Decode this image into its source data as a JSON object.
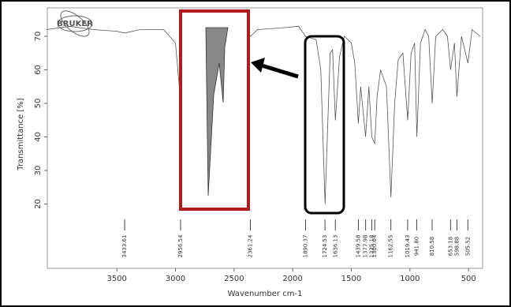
{
  "logo": "BRUKER",
  "chart_data": {
    "type": "line",
    "ylabel": "Transmittance [%]",
    "xlabel": "Wavenumber cm-1",
    "x": [
      4100,
      3900,
      3700,
      3500,
      3433,
      3300,
      3100,
      3000,
      2960,
      2930,
      2870,
      2800,
      2600,
      2400,
      2361,
      2300,
      2100,
      1950,
      1890,
      1800,
      1760,
      1724,
      1700,
      1680,
      1660,
      1636,
      1600,
      1560,
      1500,
      1470,
      1440,
      1420,
      1378,
      1350,
      1325,
      1300,
      1280,
      1250,
      1200,
      1162,
      1130,
      1100,
      1060,
      1019,
      990,
      960,
      941,
      910,
      870,
      840,
      810,
      780,
      720,
      680,
      653,
      620,
      599,
      560,
      505,
      470,
      400
    ],
    "series": [
      {
        "color": "#555555",
        "values": [
          72,
          73,
          72,
          71.5,
          71,
          72,
          72,
          68,
          52,
          60,
          66,
          71,
          72,
          72,
          70,
          72,
          72.5,
          73,
          70,
          69,
          60,
          20,
          45,
          65,
          66,
          45,
          64,
          70,
          68,
          62,
          44,
          55,
          40,
          55,
          40,
          38,
          52,
          60,
          55,
          22,
          50,
          63,
          65,
          45,
          65,
          68,
          40,
          68,
          72,
          70,
          50,
          70,
          72,
          70,
          60,
          68,
          52,
          70,
          62,
          72,
          70
        ]
      }
    ],
    "peaks": [
      3433.61,
      2956.54,
      2361.24,
      1890.37,
      1724.53,
      1636.13,
      1439.58,
      1377.98,
      1325.18,
      1300.04,
      1162.55,
      1019.43,
      {
        "value": 941.8,
        "label": "941.80"
      },
      810.58,
      653.18,
      598.88,
      505.52
    ],
    "xlim": [
      4100,
      400
    ],
    "ylim": [
      2,
      78
    ],
    "xticks": [
      3500,
      3000,
      2500,
      2000,
      1500,
      1000,
      500
    ],
    "yticks": [
      20,
      30,
      40,
      50,
      60,
      70
    ]
  }
}
